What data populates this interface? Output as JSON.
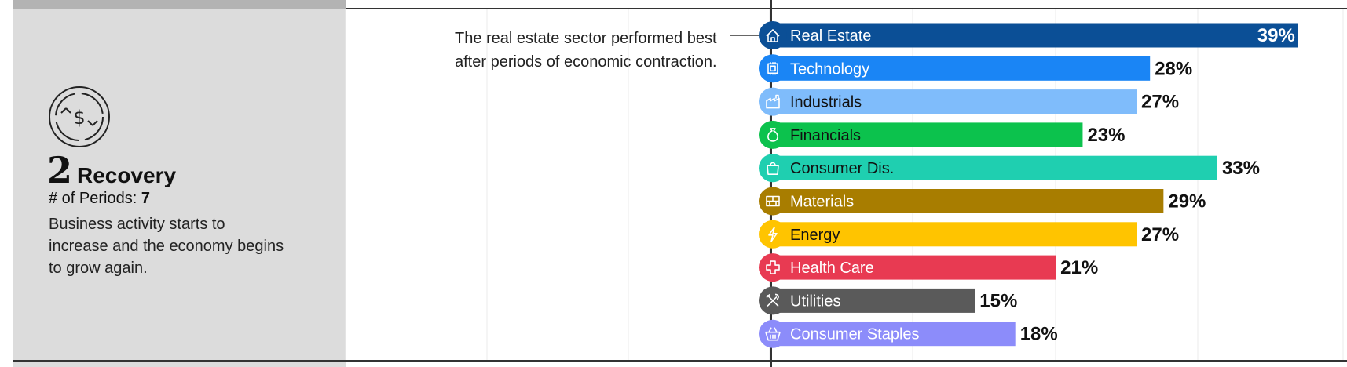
{
  "phase": {
    "number": "2",
    "name": "Recovery",
    "periods_label": "# of Periods:",
    "periods_value": "7",
    "description": "Business activity starts to increase and the economy begins to grow again.",
    "icon": "recycle-dollar-icon"
  },
  "annotation": "The real estate sector performed best after periods of economic contraction.",
  "chart_data": {
    "type": "bar",
    "orientation": "horizontal",
    "categories": [
      "Real Estate",
      "Technology",
      "Industrials",
      "Financials",
      "Consumer Dis.",
      "Materials",
      "Energy",
      "Health Care",
      "Utilities",
      "Consumer Staples"
    ],
    "values": [
      39,
      28,
      27,
      23,
      33,
      29,
      27,
      21,
      15,
      18
    ],
    "labels": [
      "39%",
      "28%",
      "27%",
      "23%",
      "33%",
      "29%",
      "27%",
      "21%",
      "15%",
      "18%"
    ],
    "colors": [
      "#0b4f96",
      "#1a85f5",
      "#7fbcfb",
      "#0cc24d",
      "#1fcfb0",
      "#a87d00",
      "#ffc400",
      "#e83a52",
      "#5a5a5a",
      "#8c8cfa"
    ],
    "text_colors": [
      "#ffffff",
      "#ffffff",
      "#111111",
      "#111111",
      "#111111",
      "#ffffff",
      "#111111",
      "#ffffff",
      "#ffffff",
      "#ffffff"
    ],
    "icons": [
      "house-icon",
      "chip-icon",
      "factory-icon",
      "money-bag-icon",
      "shopping-bag-icon",
      "bricks-icon",
      "lightning-icon",
      "medical-cross-icon",
      "tools-icon",
      "basket-icon"
    ],
    "xlim": [
      0,
      40
    ],
    "grid": true,
    "value_label_position": "outside-end; inside-end for the longest bar"
  }
}
